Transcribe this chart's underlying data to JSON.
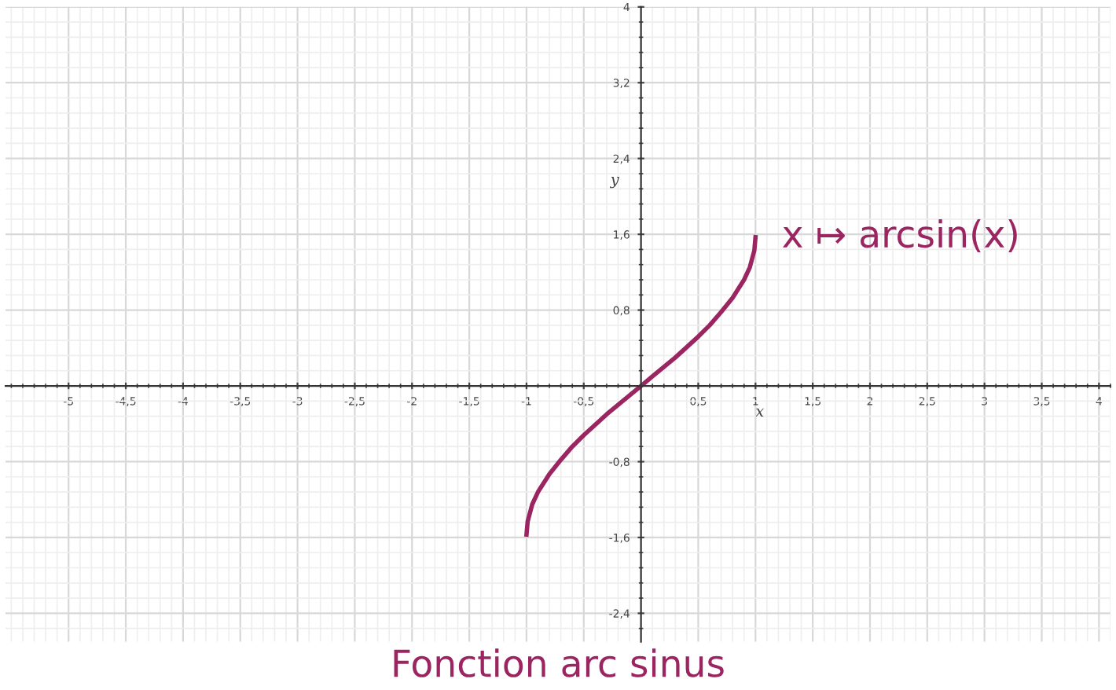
{
  "chart_data": {
    "type": "line",
    "title": "Fonction arc sinus",
    "xlabel": "x",
    "ylabel": "y",
    "x": [
      -1,
      -0.99,
      -0.95,
      -0.9,
      -0.8,
      -0.7,
      -0.6,
      -0.5,
      -0.4,
      -0.3,
      -0.2,
      -0.1,
      0,
      0.1,
      0.2,
      0.3,
      0.4,
      0.5,
      0.6,
      0.7,
      0.8,
      0.9,
      0.95,
      0.99,
      1
    ],
    "series": [
      {
        "color": "#9b2560",
        "values": [
          -1.57,
          -1.43,
          -1.25,
          -1.12,
          -0.93,
          -0.78,
          -0.64,
          -0.52,
          -0.41,
          -0.3,
          -0.2,
          -0.1,
          0,
          0.1,
          0.2,
          0.3,
          0.41,
          0.52,
          0.64,
          0.78,
          0.93,
          1.12,
          1.25,
          1.43,
          1.57
        ]
      }
    ],
    "annotations": [
      {
        "text": "x ↦ arcsin(x)",
        "x": 1,
        "y": 1.57
      }
    ],
    "xlim": [
      -5.55,
      4.1
    ],
    "ylim": [
      -2.7,
      4
    ],
    "xticks": [
      {
        "value": -5,
        "label": "-5"
      },
      {
        "value": -4.5,
        "label": "-4,5"
      },
      {
        "value": -4,
        "label": "-4"
      },
      {
        "value": -3.5,
        "label": "-3,5"
      },
      {
        "value": -3,
        "label": "-3"
      },
      {
        "value": -2.5,
        "label": "-2,5"
      },
      {
        "value": -2,
        "label": "-2"
      },
      {
        "value": -1.5,
        "label": "-1,5"
      },
      {
        "value": -1,
        "label": "-1"
      },
      {
        "value": -0.5,
        "label": "-0,5"
      },
      {
        "value": 0.5,
        "label": "0,5"
      },
      {
        "value": 1,
        "label": "1"
      },
      {
        "value": 1.5,
        "label": "1,5"
      },
      {
        "value": 2,
        "label": "2"
      },
      {
        "value": 2.5,
        "label": "2,5"
      },
      {
        "value": 3,
        "label": "3"
      },
      {
        "value": 3.5,
        "label": "3,5"
      },
      {
        "value": 4,
        "label": "4"
      }
    ],
    "yticks": [
      {
        "value": -2.4,
        "label": "-2,4"
      },
      {
        "value": -1.6,
        "label": "-1,6"
      },
      {
        "value": -0.8,
        "label": "-0,8"
      },
      {
        "value": 0.8,
        "label": "0,8"
      },
      {
        "value": 1.6,
        "label": "1,6"
      },
      {
        "value": 2.4,
        "label": "2,4"
      },
      {
        "value": 3.2,
        "label": "3,2"
      },
      {
        "value": 4,
        "label": "4"
      }
    ],
    "grid": true,
    "marker": "none",
    "line_style": "solid"
  }
}
